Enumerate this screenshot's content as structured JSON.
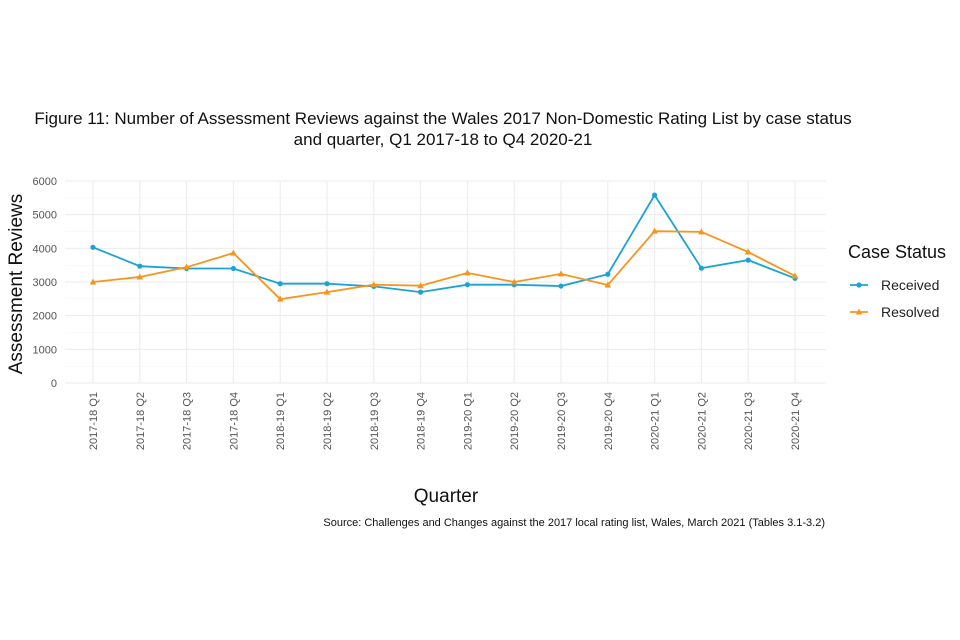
{
  "chart_data": {
    "type": "line",
    "title": [
      "Figure 11: Number of Assessment Reviews against the Wales 2017 Non-Domestic Rating List by case status",
      "and quarter, Q1 2017-18 to Q4 2020-21"
    ],
    "xlabel": "Quarter",
    "ylabel": "Assessment Reviews",
    "ylim": [
      0,
      6000
    ],
    "yticks": [
      0,
      1000,
      2000,
      3000,
      4000,
      5000,
      6000
    ],
    "grid": true,
    "legend": {
      "title": "Case Status",
      "placement": "right"
    },
    "categories": [
      "2017-18 Q1",
      "2017-18 Q2",
      "2017-18 Q3",
      "2017-18 Q4",
      "2018-19 Q1",
      "2018-19 Q2",
      "2018-19 Q3",
      "2018-19 Q4",
      "2019-20 Q1",
      "2019-20 Q2",
      "2019-20 Q3",
      "2019-20 Q4",
      "2020-21 Q1",
      "2020-21 Q2",
      "2020-21 Q3",
      "2020-21 Q4"
    ],
    "series": [
      {
        "name": "Received",
        "color": "#1ba3d6",
        "marker": "circle",
        "values": [
          4030,
          3470,
          3400,
          3400,
          2950,
          2950,
          2870,
          2700,
          2920,
          2920,
          2880,
          3230,
          5580,
          3410,
          3650,
          3110
        ]
      },
      {
        "name": "Resolved",
        "color": "#f7941d",
        "marker": "triangle",
        "values": [
          3000,
          3150,
          3440,
          3860,
          2490,
          2700,
          2920,
          2890,
          3270,
          3000,
          3240,
          2910,
          4510,
          4490,
          3890,
          3180
        ]
      }
    ],
    "source": "Source: Challenges and Changes against the 2017 local rating list, Wales, March 2021 (Tables 3.1-3.2)"
  }
}
